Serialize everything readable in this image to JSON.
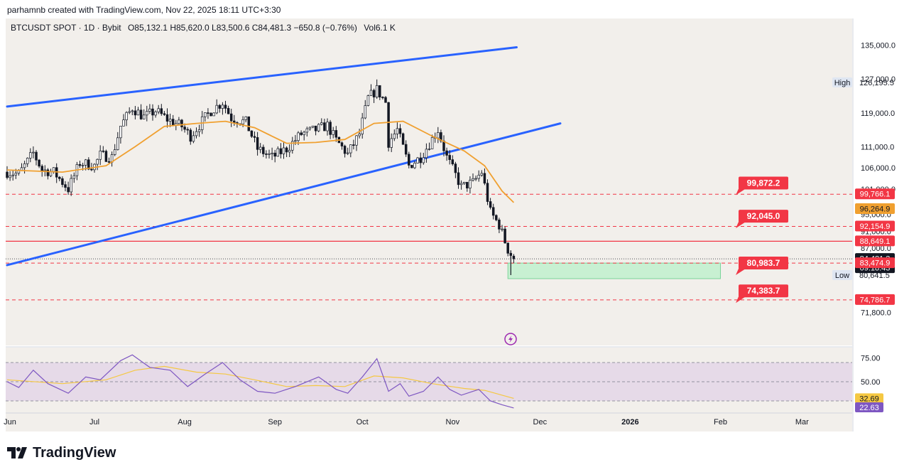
{
  "header": {
    "credit": "parhamnb created with TradingView.com, Nov 22, 2025 18:11 UTC+3:30",
    "symbol_line": "BTCUSDT SPOT · 1D · Bybit",
    "ohlc": "O85,132.1  H85,620.0  L83,500.6  C84,481.3  −650.8 (−0.76%)",
    "volume": "Vol6.1 K"
  },
  "brand": {
    "name": "TradingView"
  },
  "colors": {
    "background": "#f2efeb",
    "up": "#131722",
    "down": "#131722",
    "ema": "#f0a030",
    "trendline": "#2962ff",
    "support": "#f23645",
    "zone": "#c8f0d2",
    "rsi": "#7e57c2",
    "rsi_ma": "#f5c842",
    "rsi_band": "#e6dae8"
  },
  "chart_data": {
    "type": "candlestick",
    "symbol": "BTCUSDT SPOT",
    "timeframe": "1D",
    "exchange": "Bybit",
    "price_axis_ticks": [
      135000,
      127000,
      119000,
      111000,
      106000,
      101000,
      95000,
      91000,
      87000,
      71800
    ],
    "price_axis_tick_labels": [
      "135,000.0",
      "127,000.0",
      "119,000.0",
      "111,000.0",
      "106,000.0",
      "101,000.0",
      "95,000.0",
      "91,000.0",
      "87,000.0",
      "71,800.0"
    ],
    "time_axis_labels": [
      {
        "date": "2025-06-01",
        "label": "Jun"
      },
      {
        "date": "2025-07-01",
        "label": "Jul"
      },
      {
        "date": "2025-08-01",
        "label": "Aug"
      },
      {
        "date": "2025-09-01",
        "label": "Sep"
      },
      {
        "date": "2025-10-01",
        "label": "Oct"
      },
      {
        "date": "2025-11-01",
        "label": "Nov"
      },
      {
        "date": "2025-12-01",
        "label": "Dec"
      },
      {
        "date": "2026-01-01",
        "label": "2026"
      },
      {
        "date": "2026-02-01",
        "label": "Feb"
      },
      {
        "date": "2026-03-01",
        "label": "Mar"
      }
    ],
    "price_path": [
      [
        "2025-06-01",
        105000
      ],
      [
        "2025-06-05",
        104500
      ],
      [
        "2025-06-10",
        109500
      ],
      [
        "2025-06-13",
        105500
      ],
      [
        "2025-06-17",
        105000
      ],
      [
        "2025-06-22",
        101000
      ],
      [
        "2025-06-26",
        107200
      ],
      [
        "2025-07-01",
        106500
      ],
      [
        "2025-07-03",
        109000
      ],
      [
        "2025-07-07",
        108500
      ],
      [
        "2025-07-10",
        115900
      ],
      [
        "2025-07-14",
        120200
      ],
      [
        "2025-07-18",
        118000
      ],
      [
        "2025-07-22",
        119500
      ],
      [
        "2025-07-26",
        117500
      ],
      [
        "2025-07-31",
        115800
      ],
      [
        "2025-08-03",
        113500
      ],
      [
        "2025-08-07",
        117000
      ],
      [
        "2025-08-10",
        119500
      ],
      [
        "2025-08-14",
        121500
      ],
      [
        "2025-08-17",
        117800
      ],
      [
        "2025-08-22",
        116800
      ],
      [
        "2025-08-26",
        110500
      ],
      [
        "2025-08-31",
        108500
      ],
      [
        "2025-09-05",
        110500
      ],
      [
        "2025-09-10",
        114000
      ],
      [
        "2025-09-15",
        115000
      ],
      [
        "2025-09-19",
        116000
      ],
      [
        "2025-09-22",
        112500
      ],
      [
        "2025-09-26",
        109200
      ],
      [
        "2025-09-30",
        114000
      ],
      [
        "2025-10-03",
        122500
      ],
      [
        "2025-10-06",
        124500
      ],
      [
        "2025-10-09",
        121500
      ],
      [
        "2025-10-10",
        112000
      ],
      [
        "2025-10-13",
        115000
      ],
      [
        "2025-10-17",
        106500
      ],
      [
        "2025-10-21",
        108500
      ],
      [
        "2025-10-27",
        115000
      ],
      [
        "2025-10-30",
        108500
      ],
      [
        "2025-11-04",
        101500
      ],
      [
        "2025-11-08",
        102500
      ],
      [
        "2025-11-11",
        105000
      ],
      [
        "2025-11-14",
        95500
      ],
      [
        "2025-11-17",
        92500
      ],
      [
        "2025-11-20",
        86700
      ],
      [
        "2025-11-22",
        84481
      ]
    ],
    "last_candle": {
      "date": "2025-11-22",
      "open": 85132.1,
      "high": 85620.0,
      "low": 83500.6,
      "close": 84481.3,
      "change": -650.8,
      "change_pct": -0.76,
      "volume": "6.1 K"
    },
    "ema_path": [
      [
        "2025-06-01",
        105500
      ],
      [
        "2025-06-20",
        105000
      ],
      [
        "2025-07-05",
        106500
      ],
      [
        "2025-07-15",
        111000
      ],
      [
        "2025-07-25",
        115800
      ],
      [
        "2025-08-05",
        116500
      ],
      [
        "2025-08-15",
        117000
      ],
      [
        "2025-08-25",
        115500
      ],
      [
        "2025-09-05",
        111800
      ],
      [
        "2025-09-15",
        112000
      ],
      [
        "2025-09-25",
        112700
      ],
      [
        "2025-10-05",
        116500
      ],
      [
        "2025-10-15",
        117000
      ],
      [
        "2025-10-25",
        113500
      ],
      [
        "2025-11-05",
        110000
      ],
      [
        "2025-11-12",
        106500
      ],
      [
        "2025-11-18",
        100500
      ],
      [
        "2025-11-22",
        97800
      ]
    ],
    "trendlines": [
      {
        "name": "upper",
        "from": [
          "2025-06-01",
          120500
        ],
        "to": [
          "2025-11-23",
          134500
        ]
      },
      {
        "name": "lower",
        "from": [
          "2025-06-01",
          83000
        ],
        "to": [
          "2025-12-08",
          116500
        ]
      }
    ],
    "horizontal_lines": [
      {
        "price": 99766.1,
        "style": "dashed"
      },
      {
        "price": 92154.9,
        "style": "dashed"
      },
      {
        "price": 88649.1,
        "style": "solid"
      },
      {
        "price": 83474.9,
        "style": "dashed"
      },
      {
        "price": 74786.7,
        "style": "dashed"
      }
    ],
    "zone": {
      "from": "2025-11-20",
      "to": "2026-02-01",
      "top": 83474.9,
      "bottom": 79800
    },
    "callouts": [
      {
        "label": "99,872.2",
        "price": 99872.2
      },
      {
        "label": "92,045.0",
        "price": 92045.0
      },
      {
        "label": "80,983.7",
        "price": 80983.7
      },
      {
        "label": "74,383.7",
        "price": 74383.7
      }
    ],
    "axis_badges": [
      {
        "label": "99,766.1",
        "price": 99766.1,
        "style": "red"
      },
      {
        "label": "96,264.9",
        "price": 96264.9,
        "style": "orange"
      },
      {
        "label": "92,154.9",
        "price": 92154.9,
        "style": "red"
      },
      {
        "label": "88,649.1",
        "price": 88649.1,
        "style": "red"
      },
      {
        "label": "84,481.3",
        "price": 84481.3,
        "style": "dark",
        "sub": "09:18:43"
      },
      {
        "label": "83,474.9",
        "price": 83474.9,
        "style": "red"
      },
      {
        "label": "74,786.7",
        "price": 74786.7,
        "style": "red"
      }
    ],
    "high_marker": {
      "label": "High",
      "value_label": "126,195.5",
      "price": 126195.5
    },
    "low_marker": {
      "label": "Low",
      "value_label": "80,641.5",
      "price": 80641.5
    },
    "rsi": {
      "levels": [
        70,
        50,
        30
      ],
      "tick_labels": [
        "75.00",
        "50.00"
      ],
      "current_rsi": "22.63",
      "current_ma": "32.69",
      "rsi_path": [
        [
          "2025-06-01",
          50
        ],
        [
          "2025-06-05",
          44
        ],
        [
          "2025-06-10",
          62
        ],
        [
          "2025-06-15",
          48
        ],
        [
          "2025-06-22",
          38
        ],
        [
          "2025-06-28",
          55
        ],
        [
          "2025-07-03",
          52
        ],
        [
          "2025-07-10",
          72
        ],
        [
          "2025-07-14",
          78
        ],
        [
          "2025-07-20",
          65
        ],
        [
          "2025-07-27",
          62
        ],
        [
          "2025-08-02",
          45
        ],
        [
          "2025-08-08",
          58
        ],
        [
          "2025-08-14",
          70
        ],
        [
          "2025-08-20",
          52
        ],
        [
          "2025-08-26",
          40
        ],
        [
          "2025-09-01",
          38
        ],
        [
          "2025-09-08",
          45
        ],
        [
          "2025-09-16",
          55
        ],
        [
          "2025-09-22",
          42
        ],
        [
          "2025-09-26",
          38
        ],
        [
          "2025-10-01",
          55
        ],
        [
          "2025-10-06",
          74
        ],
        [
          "2025-10-10",
          40
        ],
        [
          "2025-10-14",
          48
        ],
        [
          "2025-10-17",
          35
        ],
        [
          "2025-10-22",
          40
        ],
        [
          "2025-10-27",
          55
        ],
        [
          "2025-10-31",
          42
        ],
        [
          "2025-11-04",
          36
        ],
        [
          "2025-11-10",
          42
        ],
        [
          "2025-11-14",
          30
        ],
        [
          "2025-11-18",
          26
        ],
        [
          "2025-11-22",
          22.63
        ]
      ],
      "ma_path": [
        [
          "2025-06-01",
          52
        ],
        [
          "2025-06-20",
          48
        ],
        [
          "2025-07-05",
          52
        ],
        [
          "2025-07-15",
          62
        ],
        [
          "2025-07-25",
          66
        ],
        [
          "2025-08-05",
          60
        ],
        [
          "2025-08-15",
          58
        ],
        [
          "2025-08-25",
          52
        ],
        [
          "2025-09-05",
          45
        ],
        [
          "2025-09-15",
          46
        ],
        [
          "2025-09-25",
          45
        ],
        [
          "2025-10-05",
          56
        ],
        [
          "2025-10-15",
          54
        ],
        [
          "2025-10-25",
          48
        ],
        [
          "2025-11-05",
          43
        ],
        [
          "2025-11-12",
          41
        ],
        [
          "2025-11-18",
          36
        ],
        [
          "2025-11-22",
          32.69
        ]
      ]
    }
  }
}
